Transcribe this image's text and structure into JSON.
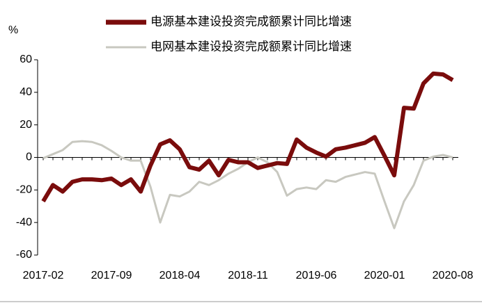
{
  "chart_data": {
    "type": "line",
    "y_label": "%",
    "categories": [
      "2017-02",
      null,
      null,
      null,
      null,
      null,
      null,
      "2017-09",
      null,
      null,
      null,
      null,
      null,
      null,
      "2018-04",
      null,
      null,
      null,
      null,
      null,
      null,
      "2018-11",
      null,
      null,
      null,
      null,
      null,
      null,
      "2019-06",
      null,
      null,
      null,
      null,
      null,
      null,
      "2020-01",
      null,
      null,
      null,
      null,
      null,
      null,
      "2020-08"
    ],
    "series": [
      {
        "name": "电源基本建设投资完成额累计同比增速",
        "color": "#7a0c0c",
        "values": [
          -27,
          -17,
          -21,
          -15,
          -13.5,
          -13.5,
          -14,
          -13,
          -17,
          -13.5,
          -21,
          -5,
          8,
          10.5,
          5,
          -6,
          -7.5,
          -2,
          -11,
          -1.5,
          -3,
          -3,
          -6.5,
          -5,
          -3.5,
          -4,
          11,
          6,
          3,
          0.5,
          5,
          6,
          7.5,
          9,
          12.5,
          1,
          -11,
          30.5,
          30,
          45.5,
          51.5,
          51,
          47.5
        ]
      },
      {
        "name": "电网基本建设投资完成额累计同比增速",
        "color": "#c8c8c0",
        "values": [
          -0.5,
          2,
          4.5,
          9.5,
          10,
          9.5,
          7.5,
          4,
          0,
          -2,
          -2,
          -18,
          -40,
          -23,
          -24,
          -21,
          -15,
          -17,
          -14,
          -10,
          -7,
          -3,
          0,
          -3,
          -9,
          -23.5,
          -19.5,
          -18.5,
          -19.5,
          -14,
          -15,
          -12,
          -10.5,
          -9,
          -10,
          -27,
          -43.5,
          -27,
          -17,
          -2,
          0.5,
          1.5,
          0
        ]
      }
    ],
    "ylim": [
      -60,
      60
    ],
    "yticks": [
      -60,
      -40,
      -20,
      0,
      20,
      40,
      60
    ],
    "legend": "top"
  }
}
